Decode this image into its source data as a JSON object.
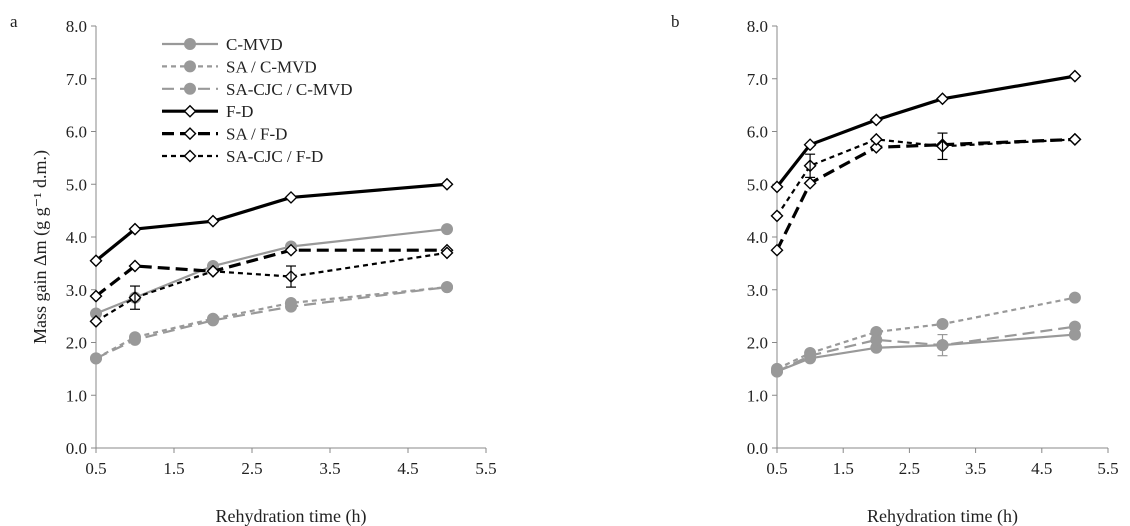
{
  "panels": [
    "a",
    "b"
  ],
  "legend": [
    {
      "label": "C-MVD",
      "color": "#999999",
      "dash": "solid",
      "weight": "thin",
      "marker": "circle"
    },
    {
      "label": "SA / C-MVD",
      "color": "#999999",
      "dash": "dash",
      "weight": "thin",
      "marker": "circle"
    },
    {
      "label": "SA-CJC / C-MVD",
      "color": "#999999",
      "dash": "longdash",
      "weight": "thin",
      "marker": "circle"
    },
    {
      "label": "F-D",
      "color": "#000000",
      "dash": "solid",
      "weight": "thick",
      "marker": "diamond"
    },
    {
      "label": "SA / F-D",
      "color": "#000000",
      "dash": "longdash",
      "weight": "thick",
      "marker": "diamond"
    },
    {
      "label": "SA-CJC / F-D",
      "color": "#000000",
      "dash": "dash",
      "weight": "thin",
      "marker": "diamond"
    }
  ],
  "chart_data": [
    {
      "type": "line",
      "panel": "a",
      "xlabel": "Rehydration time (h)",
      "ylabel": "Mass gain Δm (g g⁻¹ d.m.)",
      "xlim": [
        0.5,
        5.5
      ],
      "ylim": [
        0.0,
        8.0
      ],
      "xticks": [
        "0.5",
        "1.5",
        "2.5",
        "3.5",
        "4.5",
        "5.5"
      ],
      "yticks": [
        "0.0",
        "1.0",
        "2.0",
        "3.0",
        "4.0",
        "5.0",
        "6.0",
        "7.0",
        "8.0"
      ],
      "x": [
        0.5,
        1,
        2,
        3,
        5
      ],
      "series": [
        {
          "name": "C-MVD",
          "values": [
            2.55,
            2.85,
            3.45,
            3.82,
            4.15
          ]
        },
        {
          "name": "SA / C-MVD",
          "values": [
            1.7,
            2.1,
            2.45,
            2.75,
            3.05
          ]
        },
        {
          "name": "SA-CJC / C-MVD",
          "values": [
            1.7,
            2.05,
            2.42,
            2.68,
            3.05
          ]
        },
        {
          "name": "F-D",
          "values": [
            3.55,
            4.15,
            4.3,
            4.75,
            5.0
          ]
        },
        {
          "name": "SA / F-D",
          "values": [
            2.88,
            3.45,
            3.35,
            3.75,
            3.75
          ]
        },
        {
          "name": "SA-CJC / F-D",
          "values": [
            2.4,
            2.85,
            3.35,
            3.25,
            3.7
          ]
        }
      ],
      "error_bars": [
        {
          "series": "SA-CJC / F-D",
          "x": 1,
          "err": 0.22
        },
        {
          "series": "SA-CJC / F-D",
          "x": 3,
          "err": 0.2
        }
      ]
    },
    {
      "type": "line",
      "panel": "b",
      "xlabel": "Rehydration time (h)",
      "ylabel": "",
      "xlim": [
        0.5,
        5.5
      ],
      "ylim": [
        0.0,
        8.0
      ],
      "xticks": [
        "0.5",
        "1.5",
        "2.5",
        "3.5",
        "4.5",
        "5.5"
      ],
      "yticks": [
        "0.0",
        "1.0",
        "2.0",
        "3.0",
        "4.0",
        "5.0",
        "6.0",
        "7.0",
        "8.0"
      ],
      "x": [
        0.5,
        1,
        2,
        3,
        5
      ],
      "series": [
        {
          "name": "C-MVD",
          "values": [
            1.45,
            1.7,
            1.9,
            1.95,
            2.15
          ]
        },
        {
          "name": "SA / C-MVD",
          "values": [
            1.5,
            1.8,
            2.2,
            2.35,
            2.85
          ]
        },
        {
          "name": "SA-CJC / C-MVD",
          "values": [
            1.45,
            1.75,
            2.05,
            1.95,
            2.3
          ]
        },
        {
          "name": "F-D",
          "values": [
            4.95,
            5.75,
            6.22,
            6.62,
            7.05
          ]
        },
        {
          "name": "SA / F-D",
          "values": [
            3.75,
            5.02,
            5.7,
            5.75,
            5.85
          ]
        },
        {
          "name": "SA-CJC / F-D",
          "values": [
            4.4,
            5.35,
            5.85,
            5.72,
            5.85
          ]
        }
      ],
      "error_bars": [
        {
          "series": "SA-CJC / F-D",
          "x": 1,
          "err": 0.22
        },
        {
          "series": "SA-CJC / F-D",
          "x": 3,
          "err": 0.25
        },
        {
          "series": "SA-CJC / C-MVD",
          "x": 3,
          "err": 0.2
        }
      ]
    }
  ]
}
